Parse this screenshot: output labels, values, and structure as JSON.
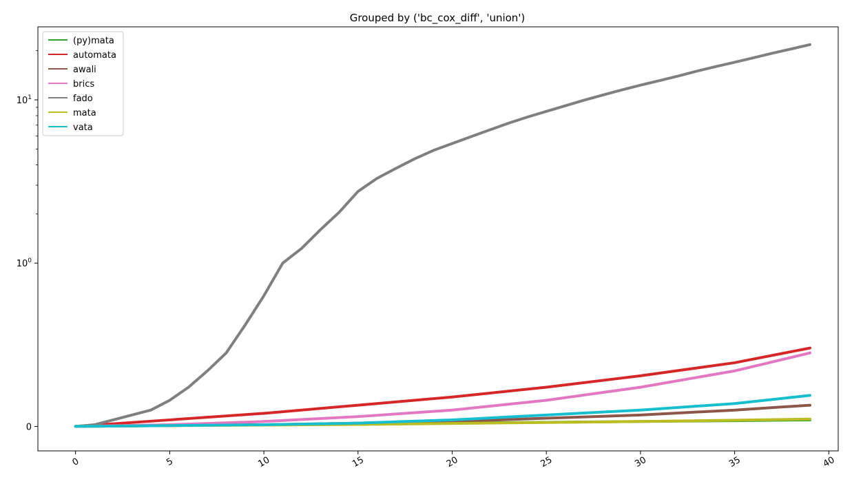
{
  "chart_data": {
    "type": "line",
    "title": "Grouped by ('bc_cox_diff', 'union')",
    "xlabel": "",
    "ylabel": "",
    "xlim": [
      -2,
      40.5
    ],
    "yscale": "symlog",
    "ylim": [
      -0.15,
      28
    ],
    "x_ticks": [
      0,
      5,
      10,
      15,
      20,
      25,
      30,
      35,
      40
    ],
    "y_ticks": [
      {
        "value": 0,
        "base": "0",
        "exp": ""
      },
      {
        "value": 1,
        "base": "10",
        "exp": "0"
      },
      {
        "value": 10,
        "base": "10",
        "exp": "1"
      }
    ],
    "legend_position": "upper-left",
    "grid": false,
    "series": [
      {
        "name": "(py)mata",
        "color": "#2ca02c",
        "x": [
          0,
          5,
          10,
          15,
          20,
          25,
          30,
          35,
          39
        ],
        "y": [
          0,
          0.005,
          0.01,
          0.015,
          0.02,
          0.025,
          0.03,
          0.035,
          0.04
        ]
      },
      {
        "name": "automata",
        "color": "#d62728",
        "x": [
          0,
          5,
          10,
          15,
          20,
          25,
          30,
          35,
          39
        ],
        "y": [
          0,
          0.04,
          0.08,
          0.13,
          0.18,
          0.24,
          0.31,
          0.39,
          0.48
        ]
      },
      {
        "name": "awali",
        "color": "#8c564b",
        "x": [
          0,
          5,
          10,
          15,
          20,
          25,
          30,
          35,
          39
        ],
        "y": [
          0,
          0.005,
          0.01,
          0.02,
          0.03,
          0.05,
          0.07,
          0.1,
          0.13
        ]
      },
      {
        "name": "brics",
        "color": "#e377c2",
        "x": [
          0,
          5,
          10,
          15,
          20,
          25,
          30,
          35,
          39
        ],
        "y": [
          0,
          0.01,
          0.03,
          0.06,
          0.1,
          0.16,
          0.24,
          0.34,
          0.45
        ]
      },
      {
        "name": "fado",
        "color": "#7f7f7f",
        "x": [
          0,
          1,
          2,
          3,
          4,
          5,
          6,
          7,
          8,
          9,
          10,
          11,
          12,
          13,
          14,
          15,
          16,
          17,
          18,
          19,
          20,
          21,
          22,
          23,
          24,
          25,
          26,
          27,
          28,
          29,
          30,
          31,
          32,
          33,
          34,
          35,
          36,
          37,
          38,
          39
        ],
        "y": [
          0,
          0.01,
          0.04,
          0.07,
          0.1,
          0.16,
          0.24,
          0.34,
          0.45,
          0.62,
          0.8,
          1.0,
          1.23,
          1.6,
          2.05,
          2.75,
          3.3,
          3.8,
          4.35,
          4.9,
          5.4,
          5.95,
          6.55,
          7.2,
          7.85,
          8.5,
          9.2,
          9.95,
          10.7,
          11.5,
          12.3,
          13.1,
          14.0,
          15.0,
          16.0,
          17.0,
          18.1,
          19.3,
          20.5,
          21.8
        ]
      },
      {
        "name": "mata",
        "color": "#bcbd22",
        "x": [
          0,
          5,
          10,
          15,
          20,
          25,
          30,
          35,
          39
        ],
        "y": [
          0,
          0.005,
          0.008,
          0.012,
          0.018,
          0.024,
          0.03,
          0.038,
          0.045
        ]
      },
      {
        "name": "vata",
        "color": "#17becf",
        "x": [
          0,
          5,
          10,
          15,
          20,
          25,
          30,
          35,
          39
        ],
        "y": [
          0,
          0.005,
          0.01,
          0.02,
          0.04,
          0.07,
          0.1,
          0.14,
          0.19
        ]
      }
    ]
  }
}
